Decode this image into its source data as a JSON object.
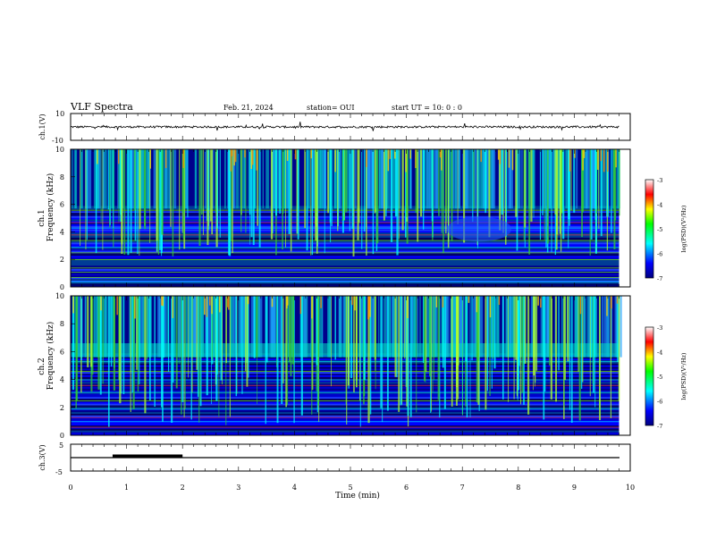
{
  "header": {
    "title": "VLF Spectra",
    "date": "Feb. 21, 2024",
    "station": "station= OUI",
    "start": "start  UT =   10: 0  : 0"
  },
  "chart_data": [
    {
      "type": "line",
      "ylabel": "ch.1(V)",
      "ylim": [
        -10,
        10
      ],
      "yticks": [
        "10",
        "-10"
      ],
      "xlim": [
        0,
        10
      ],
      "description_level": "noise trace near 0 V with spikes"
    },
    {
      "type": "heatmap",
      "ylabel": "ch.1\nFrequency (kHz)",
      "ylabel_lines": [
        "ch.1",
        "Frequency (kHz)"
      ],
      "ylim": [
        0,
        10
      ],
      "yticks": [
        "0",
        "2",
        "4",
        "6",
        "8",
        "10"
      ],
      "xlim": [
        0,
        10
      ],
      "data_extent_min": 9.8,
      "colorbar": {
        "label": "log(PSD)(V²/Hz)",
        "ticks": [
          "-3",
          "-4",
          "-5",
          "-6",
          "-7"
        ],
        "range": [
          -7,
          -3
        ]
      }
    },
    {
      "type": "heatmap",
      "ylabel_lines": [
        "ch.2",
        "Frequency (kHz)"
      ],
      "ylim": [
        0,
        10
      ],
      "yticks": [
        "0",
        "2",
        "4",
        "6",
        "8",
        "10"
      ],
      "xlim": [
        0,
        10
      ],
      "data_extent_min": 9.8,
      "colorbar": {
        "label": "log(PSD)(V²/Hz)",
        "ticks": [
          "-3",
          "-4",
          "-5",
          "-6",
          "-7"
        ],
        "range": [
          -7,
          -3
        ]
      }
    },
    {
      "type": "line",
      "ylabel": "ch.3(V)",
      "ylim": [
        -5,
        5
      ],
      "yticks": [
        "5",
        "-5"
      ],
      "xlim": [
        0,
        10
      ],
      "xlabel": "Time (min)",
      "xticks": [
        "0",
        "1",
        "2",
        "3",
        "4",
        "5",
        "6",
        "7",
        "8",
        "9",
        "10"
      ],
      "marker_segment": [
        0.75,
        2.0
      ]
    }
  ],
  "colors": {
    "frame": "#000000",
    "spectrogram_base": "#00008b"
  }
}
